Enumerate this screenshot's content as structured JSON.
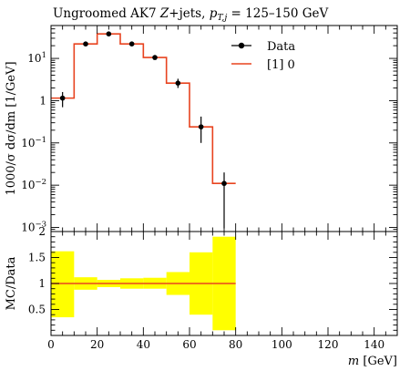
{
  "chart_data": [
    {
      "type": "line",
      "title": "Ungroomed AK7 Z+jets, p_T,j = 125–150 GeV",
      "title_parts": {
        "prefix": "Ungroomed AK7 ",
        "z": "Z",
        "mid": "+jets, ",
        "pt": "p",
        "sub": "T,j",
        "suffix": " = 125–150 GeV"
      },
      "ylabel": "1000/σ dσ/dm [1/GeV]",
      "yscale": "log",
      "ylim": [
        0.0008,
        60
      ],
      "xlim": [
        0,
        150
      ],
      "legend_position": "top-right",
      "yticks": [
        {
          "value": 0.001,
          "base": "10",
          "exp": "−3"
        },
        {
          "value": 0.01,
          "base": "10",
          "exp": "−2"
        },
        {
          "value": 0.1,
          "base": "10",
          "exp": "−1"
        },
        {
          "value": 1,
          "base": "1",
          "exp": ""
        },
        {
          "value": 10,
          "base": "10",
          "exp": "1"
        }
      ],
      "series": [
        {
          "name": "Data",
          "style": "points",
          "color": "#000000",
          "points": [
            {
              "x": 5,
              "y": 1.15,
              "err_low": 0.7,
              "err_high": 1.6
            },
            {
              "x": 15,
              "y": 22,
              "err_low": 20,
              "err_high": 24
            },
            {
              "x": 25,
              "y": 38,
              "err_low": 35,
              "err_high": 41
            },
            {
              "x": 35,
              "y": 22,
              "err_low": 20,
              "err_high": 24
            },
            {
              "x": 45,
              "y": 10.5,
              "err_low": 9.4,
              "err_high": 11.7
            },
            {
              "x": 55,
              "y": 2.6,
              "err_low": 2.0,
              "err_high": 3.3
            },
            {
              "x": 65,
              "y": 0.24,
              "err_low": 0.1,
              "err_high": 0.42
            },
            {
              "x": 75,
              "y": 0.011,
              "err_low": 0.00095,
              "err_high": 0.02
            }
          ]
        },
        {
          "name": "[1] 0",
          "style": "step",
          "color": "#e8431f",
          "bins": [
            {
              "x_low": 0,
              "x_high": 10,
              "y": 1.15
            },
            {
              "x_low": 10,
              "x_high": 20,
              "y": 22
            },
            {
              "x_low": 20,
              "x_high": 30,
              "y": 38
            },
            {
              "x_low": 30,
              "x_high": 40,
              "y": 22
            },
            {
              "x_low": 40,
              "x_high": 50,
              "y": 10.5
            },
            {
              "x_low": 50,
              "x_high": 60,
              "y": 2.6
            },
            {
              "x_low": 60,
              "x_high": 70,
              "y": 0.24
            },
            {
              "x_low": 70,
              "x_high": 80,
              "y": 0.011
            }
          ]
        }
      ]
    },
    {
      "type": "area",
      "ylabel": "MC/Data",
      "xlabel": "m [GeV]",
      "xlabel_parts": {
        "var": "m",
        "unit": " [GeV]"
      },
      "xlim": [
        0,
        150
      ],
      "ylim": [
        0,
        2
      ],
      "xticks": [
        0,
        20,
        40,
        60,
        80,
        100,
        120,
        140
      ],
      "yticks": [
        0.5,
        1,
        1.5,
        2
      ],
      "band_color": "#ffff00",
      "ratio_color": "#e8431f",
      "ratio_value": 1,
      "bands": [
        {
          "x_low": 0,
          "x_high": 10,
          "low": 0.35,
          "high": 1.62
        },
        {
          "x_low": 10,
          "x_high": 20,
          "low": 0.88,
          "high": 1.12
        },
        {
          "x_low": 20,
          "x_high": 30,
          "low": 0.93,
          "high": 1.07
        },
        {
          "x_low": 30,
          "x_high": 40,
          "low": 0.9,
          "high": 1.1
        },
        {
          "x_low": 40,
          "x_high": 50,
          "low": 0.9,
          "high": 1.11
        },
        {
          "x_low": 50,
          "x_high": 60,
          "low": 0.78,
          "high": 1.22
        },
        {
          "x_low": 60,
          "x_high": 70,
          "low": 0.4,
          "high": 1.6
        },
        {
          "x_low": 70,
          "x_high": 80,
          "low": 0.1,
          "high": 1.9
        }
      ]
    }
  ]
}
